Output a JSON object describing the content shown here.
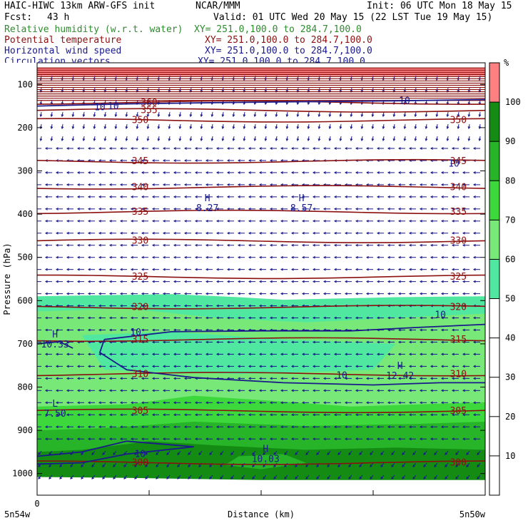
{
  "header": {
    "model": "HAIC-HIWC 13km ARW-GFS init",
    "center": "NCAR/MMM",
    "init": "Init: 06 UTC Mon 18 May 15",
    "fcst_label": "Fcst:",
    "fcst_value": "43 h",
    "valid": "Valid: 01 UTC Wed 20 May 15 (22 LST Tue 19 May 15)",
    "fields": [
      {
        "name": "Relative humidity (w.r.t. water)",
        "xy": "XY= 251.0,100.0 to 284.7,100.0",
        "color": "#2e8b2e"
      },
      {
        "name": "Potential temperature",
        "xy": "XY= 251.0,100.0 to 284.7,100.0",
        "color": "#8b1010"
      },
      {
        "name": "Horizontal wind speed",
        "xy": "XY= 251.0,100.0 to 284.7,100.0",
        "color": "#1a1a8b"
      },
      {
        "name": "Circulation vectors",
        "xy": "XY= 251.0,100.0 to 284.7,100.0",
        "color": "#1a1a8b"
      }
    ]
  },
  "colors": {
    "rh_bands": [
      "#ffffff",
      "#ffffff",
      "#ffffff",
      "#ffffff",
      "#ffffff",
      "#50e8a0",
      "#78e878",
      "#3cd83c",
      "#28b428",
      "#148c14",
      "#ff8080"
    ],
    "theta": "#8b1010",
    "wind": "#1a1a8b",
    "vector": "#1a1a8b"
  },
  "chart_data": {
    "type": "cross-section",
    "ylabel": "Pressure (hPa)",
    "xlabel": "Distance (km)",
    "x_ticks": [
      "0"
    ],
    "x_left_label": "5n54w",
    "x_right_label": "5n50w",
    "ylim": [
      1050,
      50
    ],
    "y_scale": "linear",
    "y_ticks": [
      100,
      200,
      300,
      400,
      500,
      600,
      700,
      800,
      900,
      1000
    ],
    "colorbar": {
      "unit": "%",
      "ticks": [
        10,
        20,
        30,
        40,
        50,
        60,
        70,
        80,
        90,
        100
      ]
    },
    "theta_contours": [
      {
        "value": 300,
        "label": "300"
      },
      {
        "value": 305,
        "label": "305"
      },
      {
        "value": 310,
        "label": "310"
      },
      {
        "value": 315,
        "label": "315"
      },
      {
        "value": 320,
        "label": "320"
      },
      {
        "value": 325,
        "label": "325"
      },
      {
        "value": 330,
        "label": "330"
      },
      {
        "value": 335,
        "label": "335"
      },
      {
        "value": 340,
        "label": "340"
      },
      {
        "value": 345,
        "label": "345"
      },
      {
        "value": 350,
        "label": "350"
      },
      {
        "value": 355,
        "label": "355"
      },
      {
        "value": 360,
        "label": "360"
      }
    ],
    "wind_labels": [
      "10",
      "10",
      "10",
      "10",
      "10",
      "10",
      "10",
      "10"
    ],
    "extrema": [
      {
        "type": "H",
        "value": "8.27"
      },
      {
        "type": "H",
        "value": "8.57"
      },
      {
        "type": "H",
        "value": "10.33"
      },
      {
        "type": "H",
        "value": "12.42"
      },
      {
        "type": "L",
        "value": "7.50"
      },
      {
        "type": "H",
        "value": "10.03"
      }
    ]
  }
}
